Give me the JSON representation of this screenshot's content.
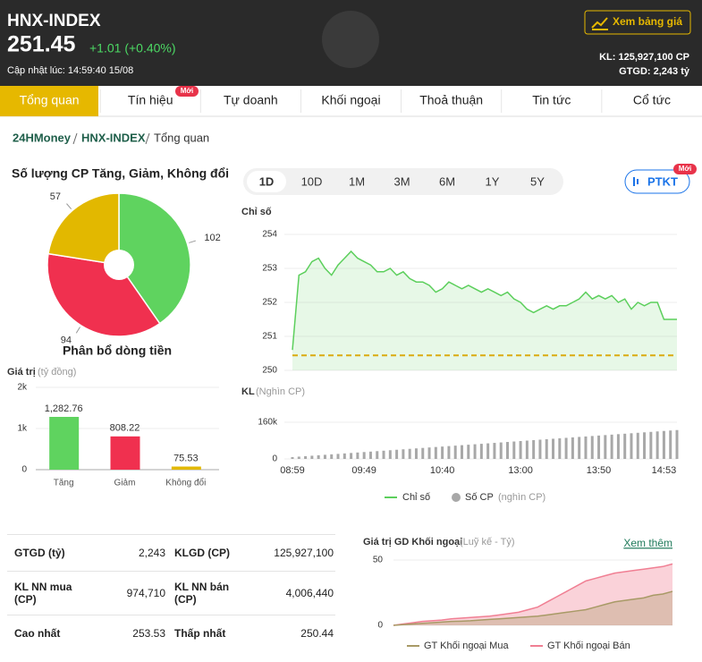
{
  "header": {
    "title": "HNX-INDEX",
    "price": "251.45",
    "change": "+1.01 (+0.40%)",
    "updated": "Cập nhật lúc: 14:59:40 15/08",
    "button": "Xem bảng giá",
    "volume": "KL: 125,927,100 CP",
    "value": "GTGD: 2,243 tỷ"
  },
  "tabs": {
    "items": [
      "Tổng quan",
      "Tín hiệu",
      "Tự doanh",
      "Khối ngoại",
      "Thoả thuận",
      "Tin tức",
      "Cổ tức"
    ],
    "badge": "Mới"
  },
  "breadcrumb": [
    "24HMoney",
    "HNX-INDEX",
    "Tổng quan"
  ],
  "periods": {
    "items": [
      "1D",
      "10D",
      "1M",
      "3M",
      "6M",
      "1Y",
      "5Y"
    ],
    "button": "PTKT",
    "badge": "Mới"
  },
  "table": {
    "rows": [
      [
        "GTGD (tỷ)",
        "2,243",
        "KLGD (CP)",
        "125,927,100"
      ],
      [
        "KL NN mua (CP)",
        "974,710",
        "KL NN bán (CP)",
        "4,006,440"
      ],
      [
        "Cao nhất",
        "253.53",
        "Thấp nhất",
        "250.44"
      ]
    ]
  },
  "chart_data": [
    {
      "type": "pie",
      "title": "Số lượng CP Tăng, Giảm, Không đổi",
      "values": [
        102,
        94,
        57
      ],
      "colors": [
        "#5fd35f",
        "#f0304f",
        "#e2b800"
      ]
    },
    {
      "type": "bar",
      "title": "Phân bổ dòng tiền",
      "ylabel": "Giá trị",
      "yunit": "(tỷ đồng)",
      "categories": [
        "Tăng",
        "Giảm",
        "Không đổi"
      ],
      "values": [
        1282.76,
        808.22,
        75.53
      ],
      "value_labels": [
        "1,282.76",
        "808.22",
        "75.53"
      ],
      "colors": [
        "#5fd35f",
        "#f0304f",
        "#e2b800"
      ],
      "ylim": [
        0,
        2000
      ],
      "yticks": [
        0,
        {
          "value": 1000,
          "label": "1k"
        },
        {
          "value": 2000,
          "label": "2k"
        }
      ]
    },
    {
      "type": "line",
      "ylabel": "Chỉ số",
      "ylim": [
        250,
        254
      ],
      "yticks": [
        250,
        251,
        252,
        253,
        254
      ],
      "grid": true,
      "reference": {
        "value": 250.44,
        "color": "#f0a500"
      },
      "series": [
        {
          "name": "Chỉ số",
          "color": "#5ccf5c",
          "values": [
            250.6,
            252.8,
            252.9,
            253.2,
            253.3,
            253.0,
            252.8,
            253.1,
            253.3,
            253.5,
            253.3,
            253.2,
            253.1,
            252.9,
            252.9,
            253.0,
            252.8,
            252.9,
            252.7,
            252.6,
            252.6,
            252.5,
            252.3,
            252.4,
            252.6,
            252.5,
            252.4,
            252.5,
            252.4,
            252.3,
            252.4,
            252.3,
            252.2,
            252.3,
            252.1,
            252.0,
            251.8,
            251.7,
            251.8,
            251.9,
            251.8,
            251.9,
            251.9,
            252.0,
            252.1,
            252.3,
            252.1,
            252.2,
            252.1,
            252.2,
            252.0,
            252.1,
            251.8,
            252.0,
            251.9,
            252.0,
            252.0,
            251.5,
            251.5,
            251.5
          ]
        }
      ]
    },
    {
      "type": "bar",
      "ylabel": "KL",
      "yunit": "(Nghìn CP)",
      "ylim": [
        0,
        160000
      ],
      "yticks": [
        0,
        {
          "value": 160000,
          "label": "160k"
        }
      ],
      "categories": [
        "08:59",
        null,
        null,
        null,
        null,
        null,
        null,
        null,
        null,
        null,
        null,
        "09:49",
        null,
        null,
        null,
        null,
        null,
        null,
        null,
        null,
        null,
        null,
        null,
        "10:40",
        null,
        null,
        null,
        null,
        null,
        null,
        null,
        null,
        null,
        null,
        null,
        "13:00",
        null,
        null,
        null,
        null,
        null,
        null,
        null,
        null,
        null,
        null,
        null,
        "13:50",
        null,
        null,
        null,
        null,
        null,
        null,
        null,
        null,
        null,
        "14:53",
        null,
        null
      ],
      "series": [
        {
          "name": "Số CP",
          "unit": "(nghìn CP)",
          "color": "#a8a8a8",
          "values": [
            8000,
            10000,
            12000,
            14000,
            16000,
            18000,
            20000,
            22000,
            24000,
            26000,
            28000,
            30000,
            32000,
            34000,
            36000,
            38000,
            40000,
            42000,
            44000,
            46000,
            48000,
            50000,
            52000,
            54000,
            56000,
            58000,
            60000,
            62000,
            64000,
            66000,
            68000,
            70000,
            72000,
            74000,
            76000,
            78000,
            80000,
            82000,
            84000,
            86000,
            88000,
            90000,
            92000,
            94000,
            96000,
            98000,
            100000,
            102000,
            104000,
            106000,
            108000,
            110000,
            112000,
            114000,
            116000,
            118000,
            120000,
            122000,
            124000,
            125927
          ]
        }
      ]
    },
    {
      "type": "area",
      "title": "Giá trị GD Khối ngoại",
      "unit": "(Luỹ kế - Tỷ)",
      "link": "Xem thêm",
      "ylim": [
        0,
        50
      ],
      "yticks": [
        0,
        50
      ],
      "series": [
        {
          "name": "GT Khối ngoại Mua",
          "color": "#a89a66",
          "values": [
            0,
            0.5,
            1,
            1.5,
            2,
            2.5,
            3,
            3.2,
            3.5,
            4,
            4.5,
            5,
            5.5,
            6,
            6.5,
            7,
            8,
            9,
            10,
            11,
            12,
            14,
            16,
            18,
            19,
            20,
            21,
            23,
            24,
            26
          ]
        },
        {
          "name": "GT Khối ngoại Bán",
          "color": "#f07f93",
          "values": [
            0,
            1,
            2,
            3,
            3.5,
            4,
            5,
            5.5,
            6,
            6.5,
            7,
            8,
            9,
            10,
            12,
            14,
            18,
            22,
            26,
            30,
            34,
            36,
            38,
            40,
            41,
            42,
            43,
            44,
            45,
            47
          ]
        }
      ]
    }
  ]
}
